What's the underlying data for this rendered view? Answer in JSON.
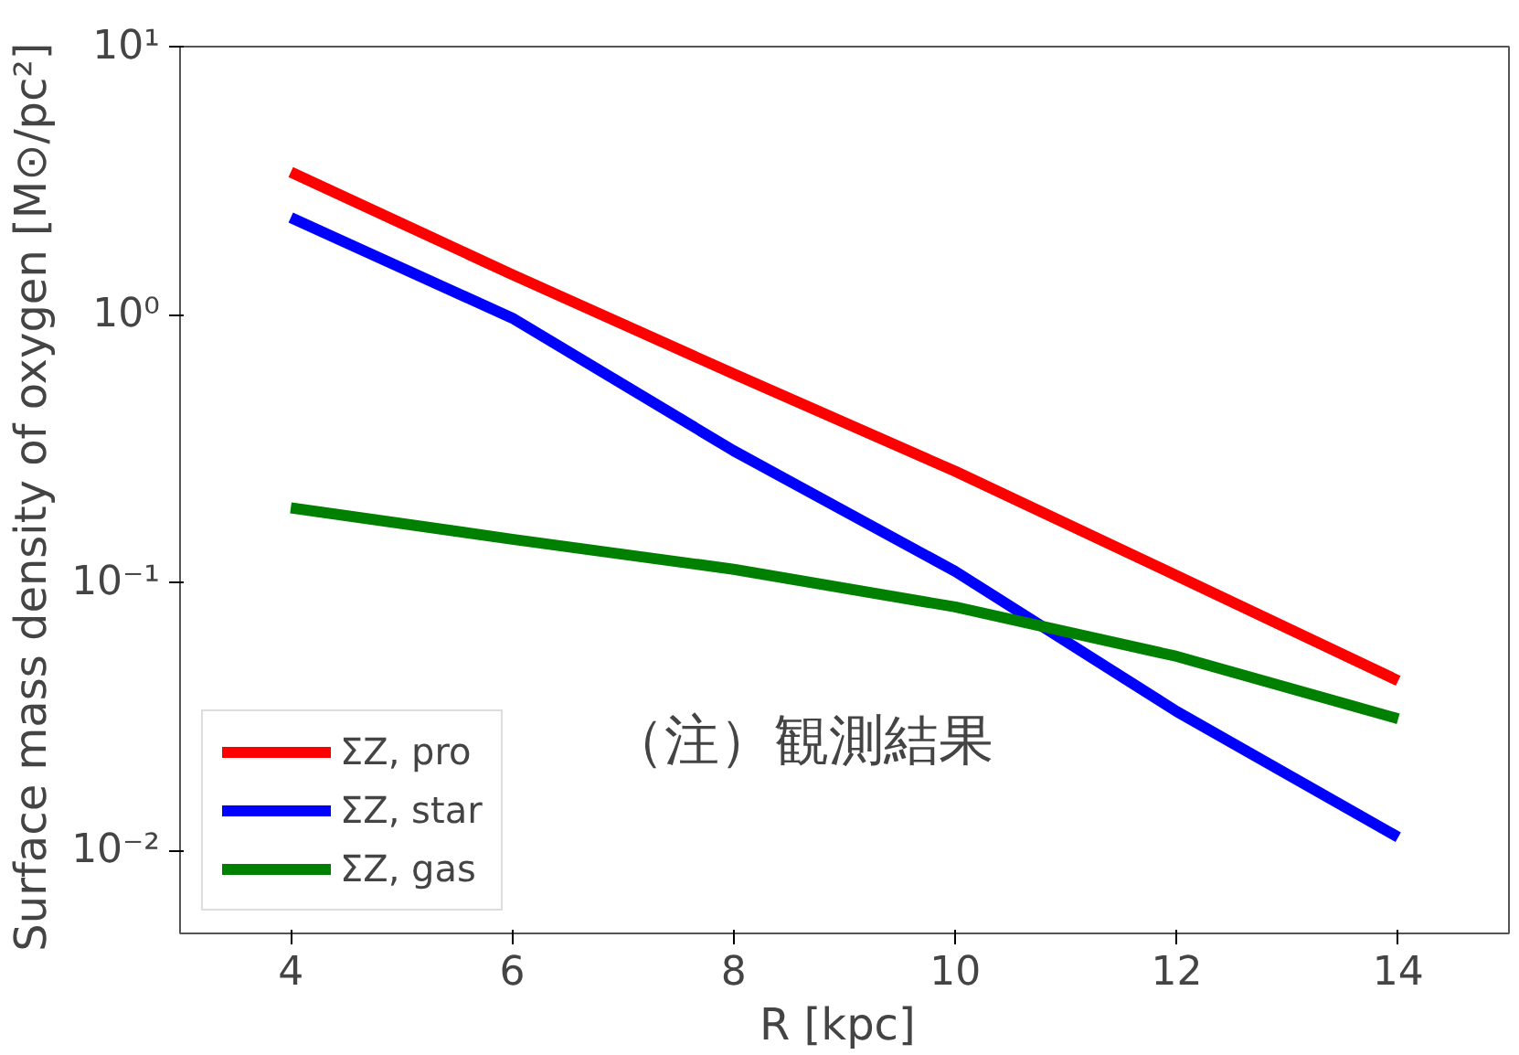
{
  "chart_data": {
    "type": "line",
    "xlabel": "R  [kpc]",
    "ylabel": "Surface mass density of oxygen  [M⊙/pc²]",
    "x": [
      4,
      6,
      8,
      10,
      12,
      14
    ],
    "series": [
      {
        "name": "ΣZ, pro",
        "color": "#ff0000",
        "values": [
          3.4,
          1.41,
          0.6,
          0.26,
          0.106,
          0.043
        ]
      },
      {
        "name": "ΣZ, star",
        "color": "#0000ff",
        "values": [
          2.3,
          0.97,
          0.31,
          0.11,
          0.033,
          0.0112
        ]
      },
      {
        "name": "ΣZ, gas",
        "color": "#008000",
        "values": [
          0.19,
          0.145,
          0.112,
          0.081,
          0.053,
          0.031
        ]
      }
    ],
    "log": "y",
    "xlim": [
      3,
      15
    ],
    "xticks": [
      4,
      6,
      8,
      10,
      12,
      14
    ],
    "ylim": [
      0.0049,
      10
    ],
    "yticks": [
      {
        "value": 0.01,
        "label": "10⁻²"
      },
      {
        "value": 0.1,
        "label": "10⁻¹"
      },
      {
        "value": 1,
        "label": "10⁰"
      },
      {
        "value": 10,
        "label": "10¹"
      }
    ],
    "annotations": [
      "（注）観測結果"
    ],
    "legend": "bottom left",
    "grid": false,
    "line_style": "solid",
    "marker": "none"
  }
}
